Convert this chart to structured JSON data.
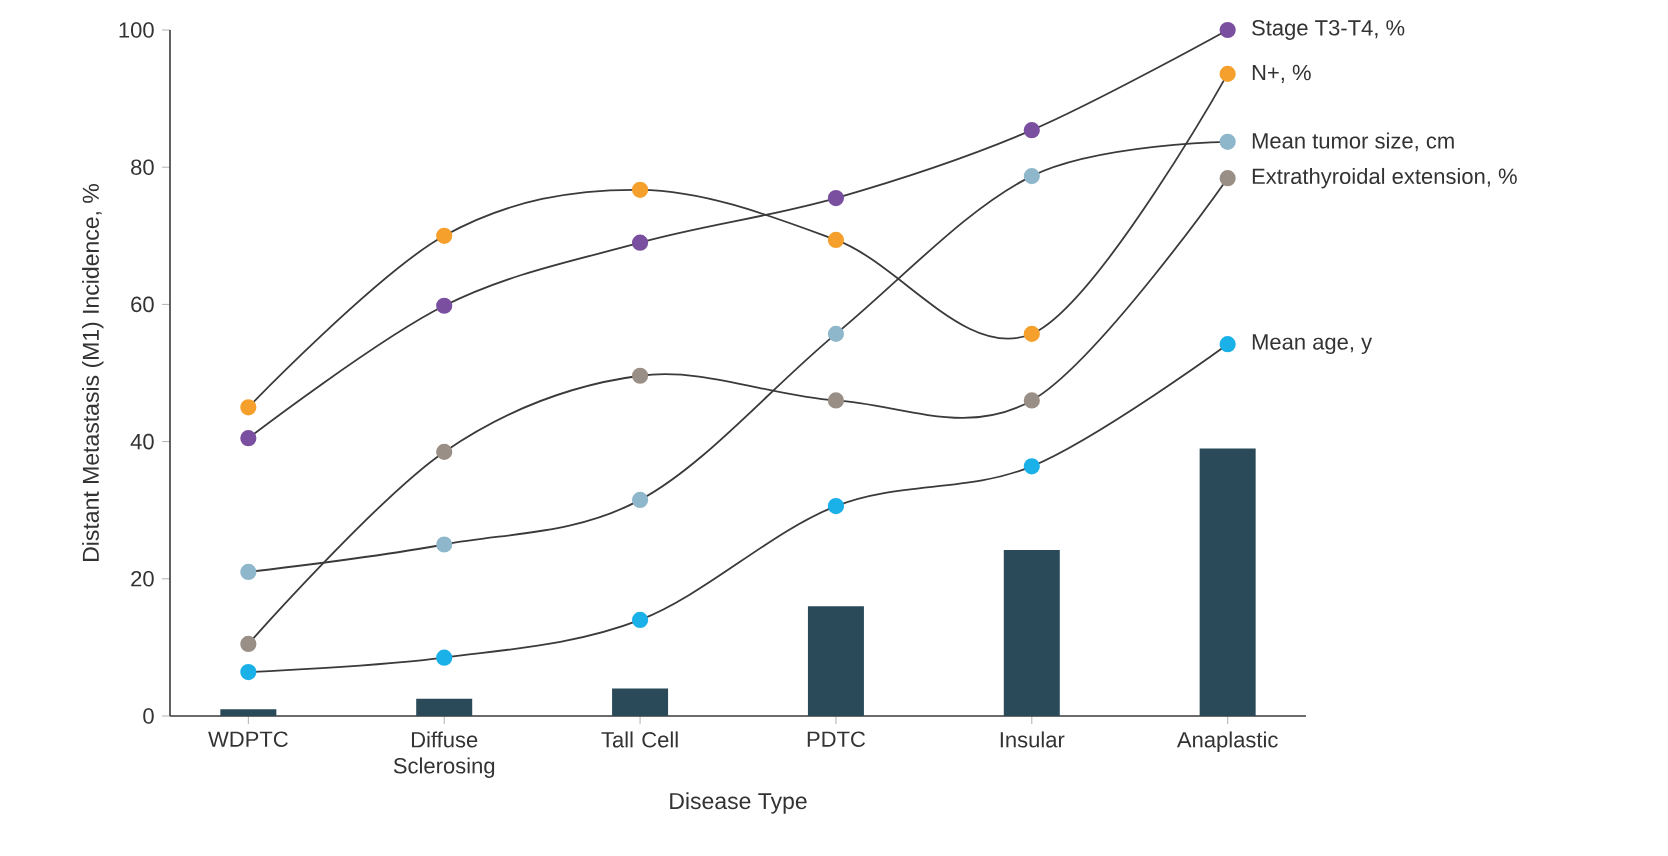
{
  "chart_data": {
    "type": "line",
    "xlabel": "Disease Type",
    "ylabel": "Distant Metastasis (M1) Incidence, %",
    "categories": [
      "WDPTC",
      "Diffuse Sclerosing",
      "Tall Cell",
      "PDTC",
      "Insular",
      "Anaplastic"
    ],
    "ylim": [
      0,
      100
    ],
    "yticks": [
      0,
      20,
      40,
      60,
      80,
      100
    ],
    "marker": "circle",
    "series": [
      {
        "type": "bar",
        "color": "#2b4a59",
        "values": [
          1,
          2.5,
          4,
          16,
          24.2,
          39
        ]
      },
      {
        "name": "Stage T3-T4, %",
        "color": "#7b4fa0",
        "values": [
          40.5,
          59.8,
          69,
          75.5,
          85.4,
          100
        ]
      },
      {
        "name": "N+, %",
        "color": "#f5a02c",
        "values": [
          45,
          70,
          76.7,
          69.4,
          55.7,
          93.6
        ]
      },
      {
        "name": "Mean tumor size, cm",
        "color": "#8fb7cb",
        "values": [
          21,
          25,
          31.5,
          55.7,
          78.7,
          83.7
        ]
      },
      {
        "name": "Extrathyroidal extension, %",
        "color": "#9a8f86",
        "values": [
          10.5,
          38.5,
          49.6,
          46,
          46,
          78.4
        ]
      },
      {
        "name": "Mean age, y",
        "color": "#1ab0e8",
        "values": [
          6.4,
          8.5,
          14,
          30.6,
          36.4,
          54.2
        ]
      }
    ]
  }
}
